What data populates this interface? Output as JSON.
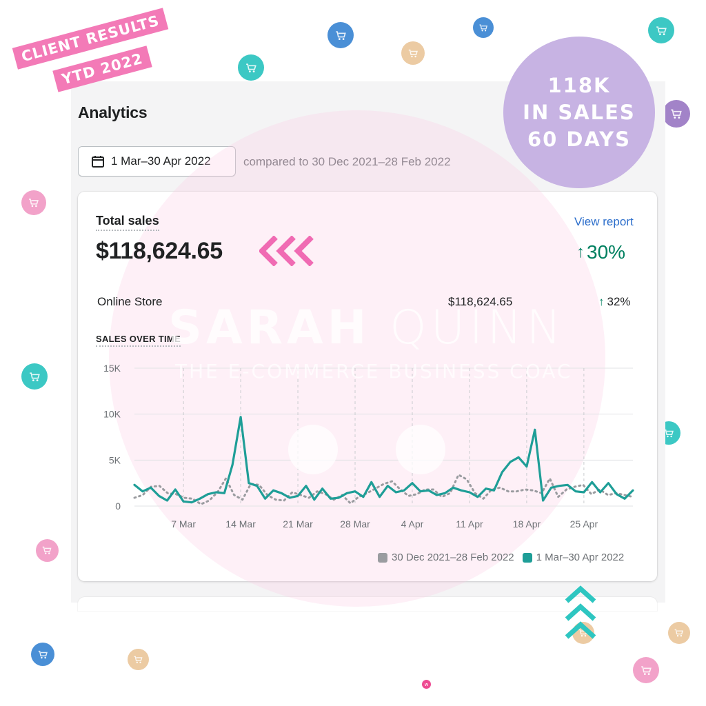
{
  "badge": {
    "line1": "CLIENT RESULTS",
    "line2": "YTD 2022"
  },
  "circle_badge": {
    "line1": "118K",
    "line2": "IN SALES",
    "line3": "60 DAYS"
  },
  "analytics": {
    "title": "Analytics",
    "date_range": "1 Mar–30 Apr 2022",
    "compare_text": "compared to 30 Dec 2021–28 Feb 2022"
  },
  "total_sales": {
    "label": "Total sales",
    "value": "$118,624.65",
    "view_report": "View report",
    "change": "30%",
    "change_arrow": "↑"
  },
  "channel": {
    "label": "Online Store",
    "value": "$118,624.65",
    "change": "32%",
    "change_arrow": "↑"
  },
  "sales_over_time_label": "SALES OVER TIME",
  "watermark": {
    "name_bold": "SARAH",
    "name_light": "QUINN",
    "tagline": "THE E-COMMERCE BUSINESS COAC"
  },
  "colors": {
    "current": "#1e9e97",
    "previous": "#9a9ca0",
    "positive": "#008060",
    "link": "#2c6ecb",
    "badge_pink": "#f37ab7",
    "badge_purple": "#c7b3e3"
  },
  "chart_data": {
    "type": "line",
    "ylim": [
      0,
      15000
    ],
    "y_ticks": [
      "0",
      "5K",
      "10K",
      "15K"
    ],
    "x_tick_labels": [
      "7 Mar",
      "14 Mar",
      "21 Mar",
      "28 Mar",
      "4 Apr",
      "11 Apr",
      "18 Apr",
      "25 Apr"
    ],
    "x_tick_days": [
      6,
      13,
      20,
      27,
      34,
      41,
      48,
      55
    ],
    "series": [
      {
        "name": "30 Dec 2021–28 Feb 2022",
        "color": "#9a9ca0",
        "style": "dotted",
        "values": [
          900,
          1200,
          2100,
          2200,
          1400,
          1300,
          900,
          800,
          200,
          600,
          1500,
          3000,
          1200,
          700,
          2400,
          2300,
          1200,
          700,
          600,
          1500,
          1200,
          900,
          1600,
          1300,
          700,
          1200,
          300,
          1000,
          1400,
          1900,
          2400,
          2700,
          1800,
          1100,
          1300,
          1800,
          1800,
          1000,
          1400,
          3400,
          2900,
          1400,
          800,
          1800,
          2000,
          1600,
          1600,
          1800,
          1700,
          1400,
          3000,
          1000,
          1800,
          2100,
          2300,
          1300,
          1800,
          1200,
          1400,
          1200,
          1000
        ]
      },
      {
        "name": "1 Mar–30 Apr 2022",
        "color": "#1e9e97",
        "style": "solid",
        "values": [
          2300,
          1600,
          2000,
          1100,
          600,
          1800,
          500,
          400,
          800,
          1300,
          1500,
          1400,
          4500,
          9700,
          2500,
          2200,
          800,
          1700,
          1400,
          900,
          1100,
          2200,
          700,
          1900,
          800,
          900,
          1400,
          1600,
          1000,
          2600,
          1000,
          2200,
          1500,
          1700,
          2500,
          1600,
          1700,
          1200,
          1400,
          2000,
          1700,
          1500,
          1000,
          1900,
          1700,
          3700,
          4800,
          5300,
          4300,
          8300,
          600,
          2000,
          2200,
          2300,
          1600,
          1500,
          2600,
          1500,
          2500,
          1300,
          800,
          1700
        ]
      }
    ],
    "legend": [
      "30 Dec 2021–28 Feb 2022",
      "1 Mar–30 Apr 2022"
    ],
    "legend_position": "bottom-right",
    "grid": true
  }
}
